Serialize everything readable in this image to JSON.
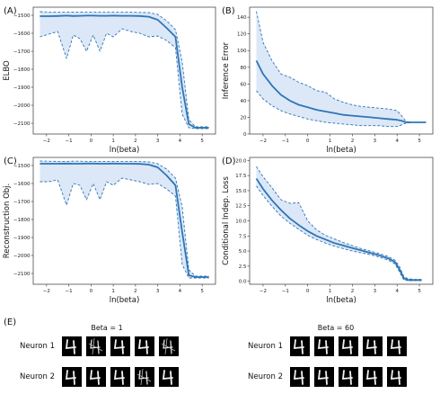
{
  "colors": {
    "line": "#2e75b6",
    "band": "#dce8f7",
    "axis": "#333333"
  },
  "panel_e": {
    "label": "(E)",
    "groups": [
      {
        "title": "Beta = 1",
        "rows": [
          {
            "label": "Neuron 1"
          },
          {
            "label": "Neuron 2"
          }
        ]
      },
      {
        "title": "Beta = 60",
        "rows": [
          {
            "label": "Neuron 1"
          },
          {
            "label": "Neuron 2"
          }
        ]
      }
    ]
  },
  "chart_data": [
    {
      "label": "(A)",
      "type": "line",
      "xlabel": "ln(beta)",
      "ylabel": "ELBO",
      "xlim": [
        -2.6,
        5.6
      ],
      "ylim": [
        -2160,
        -1455
      ],
      "xticks": [
        -2,
        -1,
        0,
        1,
        2,
        3,
        4,
        5
      ],
      "yticks": [
        -2100,
        -2000,
        -1900,
        -1800,
        -1700,
        -1600,
        -1500
      ],
      "x": [
        -2.3,
        -1.9,
        -1.5,
        -1.1,
        -0.8,
        -0.5,
        -0.2,
        0.1,
        0.4,
        0.7,
        1.0,
        1.4,
        1.8,
        2.2,
        2.6,
        3.0,
        3.4,
        3.8,
        4.1,
        4.4,
        4.7,
        5.0,
        5.3
      ],
      "series": [
        {
          "role": "mean",
          "values": [
            -1505,
            -1505,
            -1504,
            -1502,
            -1504,
            -1503,
            -1502,
            -1502,
            -1503,
            -1503,
            -1502,
            -1503,
            -1503,
            -1504,
            -1508,
            -1525,
            -1570,
            -1620,
            -1900,
            -2105,
            -2125,
            -2125,
            -2125
          ]
        },
        {
          "role": "upper",
          "values": [
            -1480,
            -1482,
            -1483,
            -1483,
            -1482,
            -1482,
            -1483,
            -1483,
            -1483,
            -1483,
            -1483,
            -1483,
            -1483,
            -1484,
            -1485,
            -1495,
            -1530,
            -1580,
            -1760,
            -2080,
            -2120,
            -2120,
            -2120
          ]
        },
        {
          "role": "lower",
          "values": [
            -1620,
            -1605,
            -1590,
            -1740,
            -1610,
            -1630,
            -1700,
            -1610,
            -1700,
            -1600,
            -1620,
            -1575,
            -1590,
            -1600,
            -1620,
            -1615,
            -1640,
            -1680,
            -2050,
            -2125,
            -2130,
            -2130,
            -2130
          ]
        }
      ]
    },
    {
      "label": "(B)",
      "type": "line",
      "xlabel": "ln(beta)",
      "ylabel": "Inference Error",
      "xlim": [
        -2.6,
        5.6
      ],
      "ylim": [
        0,
        152
      ],
      "xticks": [
        -2,
        -1,
        0,
        1,
        2,
        3,
        4,
        5
      ],
      "yticks": [
        0,
        20,
        40,
        60,
        80,
        100,
        120,
        140
      ],
      "x": [
        -2.3,
        -2.0,
        -1.6,
        -1.2,
        -0.8,
        -0.4,
        0.0,
        0.4,
        0.8,
        1.2,
        1.6,
        2.0,
        2.4,
        2.8,
        3.2,
        3.6,
        4.0,
        4.2,
        4.4,
        4.7,
        5.0,
        5.3
      ],
      "series": [
        {
          "role": "mean",
          "values": [
            88,
            72,
            58,
            47,
            40,
            35,
            32,
            29,
            27,
            25,
            23,
            22,
            21,
            20,
            19,
            18,
            17,
            16,
            14,
            14,
            14,
            14
          ]
        },
        {
          "role": "upper",
          "values": [
            147,
            110,
            88,
            72,
            68,
            62,
            58,
            52,
            50,
            42,
            38,
            35,
            33,
            32,
            31,
            30,
            28,
            22,
            15,
            14,
            14,
            14
          ]
        },
        {
          "role": "lower",
          "values": [
            52,
            42,
            34,
            28,
            24,
            21,
            18,
            16,
            14,
            13,
            12,
            11,
            10,
            10,
            10,
            9,
            9,
            11,
            13,
            14,
            14,
            14
          ]
        }
      ]
    },
    {
      "label": "(C)",
      "type": "line",
      "xlabel": "ln(beta)",
      "ylabel": "Reconstruction Obj.",
      "xlim": [
        -2.6,
        5.6
      ],
      "ylim": [
        -2160,
        -1455
      ],
      "xticks": [
        -2,
        -1,
        0,
        1,
        2,
        3,
        4,
        5
      ],
      "yticks": [
        -2100,
        -2000,
        -1900,
        -1800,
        -1700,
        -1600,
        -1500
      ],
      "x": [
        -2.3,
        -1.9,
        -1.5,
        -1.1,
        -0.8,
        -0.5,
        -0.2,
        0.1,
        0.4,
        0.7,
        1.0,
        1.4,
        1.8,
        2.2,
        2.6,
        3.0,
        3.4,
        3.8,
        4.1,
        4.4,
        4.7,
        5.0,
        5.3
      ],
      "series": [
        {
          "role": "mean",
          "values": [
            -1490,
            -1490,
            -1490,
            -1489,
            -1490,
            -1490,
            -1489,
            -1489,
            -1490,
            -1490,
            -1489,
            -1490,
            -1490,
            -1491,
            -1495,
            -1510,
            -1555,
            -1610,
            -1870,
            -2110,
            -2120,
            -2120,
            -2120
          ]
        },
        {
          "role": "upper",
          "values": [
            -1475,
            -1476,
            -1477,
            -1477,
            -1476,
            -1476,
            -1477,
            -1477,
            -1477,
            -1477,
            -1477,
            -1477,
            -1477,
            -1478,
            -1480,
            -1490,
            -1520,
            -1570,
            -1730,
            -2080,
            -2115,
            -2115,
            -2115
          ]
        },
        {
          "role": "lower",
          "values": [
            -1590,
            -1590,
            -1580,
            -1720,
            -1600,
            -1610,
            -1690,
            -1600,
            -1690,
            -1590,
            -1610,
            -1570,
            -1580,
            -1590,
            -1605,
            -1600,
            -1630,
            -1670,
            -2050,
            -2125,
            -2125,
            -2125,
            -2125
          ]
        }
      ]
    },
    {
      "label": "(D)",
      "type": "line",
      "xlabel": "ln(beta)",
      "ylabel": "Conditional Indep. Loss",
      "xlim": [
        -2.6,
        5.6
      ],
      "ylim": [
        -0.5,
        20.5
      ],
      "xticks": [
        -2,
        -1,
        0,
        1,
        2,
        3,
        4,
        5
      ],
      "yticks": [
        0.0,
        2.5,
        5.0,
        7.5,
        10.0,
        12.5,
        15.0,
        17.5,
        20.0
      ],
      "x": [
        -2.3,
        -2.0,
        -1.6,
        -1.2,
        -0.8,
        -0.4,
        0.0,
        0.4,
        0.8,
        1.2,
        1.6,
        2.0,
        2.4,
        2.8,
        3.2,
        3.6,
        3.9,
        4.1,
        4.3,
        4.5,
        4.8,
        5.1
      ],
      "series": [
        {
          "role": "mean",
          "values": [
            17.0,
            15.3,
            13.4,
            11.8,
            10.4,
            9.3,
            8.3,
            7.5,
            6.9,
            6.3,
            5.9,
            5.5,
            5.1,
            4.7,
            4.3,
            3.8,
            3.2,
            2.0,
            0.5,
            0.2,
            0.2,
            0.2
          ]
        },
        {
          "role": "upper",
          "values": [
            19.0,
            17.3,
            15.5,
            13.5,
            12.9,
            13.0,
            10.0,
            8.5,
            7.6,
            7.0,
            6.4,
            5.9,
            5.4,
            5.0,
            4.6,
            4.1,
            3.5,
            2.5,
            0.8,
            0.4,
            0.3,
            0.3
          ]
        },
        {
          "role": "lower",
          "values": [
            15.8,
            14.2,
            12.4,
            10.8,
            9.6,
            8.6,
            7.6,
            6.9,
            6.3,
            5.8,
            5.4,
            5.0,
            4.7,
            4.4,
            4.0,
            3.5,
            2.9,
            1.6,
            0.2,
            0.1,
            0.1,
            0.1
          ]
        }
      ]
    }
  ]
}
